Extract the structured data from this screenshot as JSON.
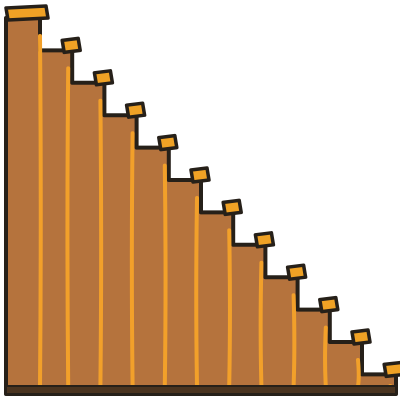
{
  "illustration": {
    "subject": "wooden-staircase",
    "step_count": 12,
    "colors": {
      "wood": "#b5733d",
      "tread": "#f0a225",
      "plank_line": "#f2a02a",
      "outline": "#262019",
      "base_shadow": "#4a3420"
    }
  }
}
